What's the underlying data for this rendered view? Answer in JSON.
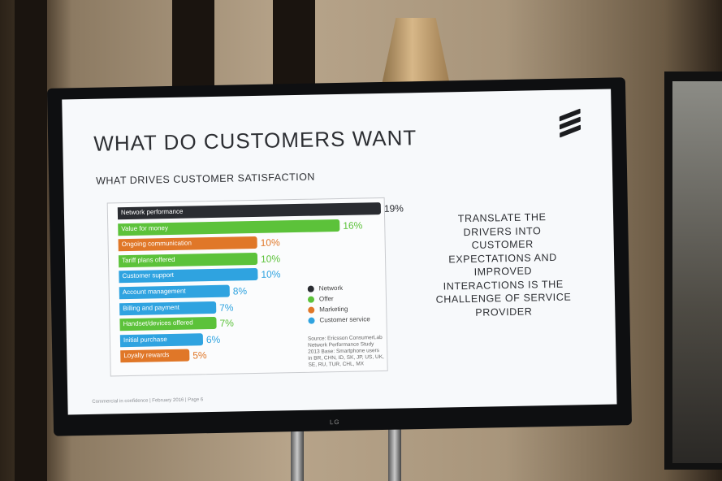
{
  "slide": {
    "title": "WHAT DO CUSTOMERS WANT",
    "subtitle": "WHAT DRIVES CUSTOMER SATISFACTION",
    "takeaway": "TRANSLATE THE DRIVERS INTO CUSTOMER EXPECTATIONS AND IMPROVED INTERACTIONS IS THE CHALLENGE OF SERVICE PROVIDER",
    "footer": "Commercial in confidence | February 2016 | Page 6",
    "source": "Source: Ericsson ConsumerLab Network Performance Study 2013 Base: Smartphone users in BR, CHN, ID, SK, JP, US, UK, SE, RU, TUR, CHL, MX",
    "brand_icon": "ericsson-logo-icon"
  },
  "tv": {
    "brand": "LG"
  },
  "colors": {
    "Network": "#2a2c31",
    "Offer": "#5cc23a",
    "Marketing": "#e07728",
    "Customer service": "#2fa3e0"
  },
  "legend": [
    "Network",
    "Offer",
    "Marketing",
    "Customer service"
  ],
  "chart_data": {
    "type": "bar",
    "orientation": "horizontal",
    "categories": [
      "Network performance",
      "Value for money",
      "Ongoing communication",
      "Tariff plans offered",
      "Customer support",
      "Account management",
      "Billing and payment",
      "Handset/devices offered",
      "Initial purchase",
      "Loyalty rewards"
    ],
    "values": [
      19,
      16,
      10,
      10,
      10,
      8,
      7,
      7,
      6,
      5
    ],
    "value_labels": [
      "19%",
      "16%",
      "10%",
      "10%",
      "10%",
      "8%",
      "7%",
      "7%",
      "6%",
      "5%"
    ],
    "groups": [
      "Network",
      "Offer",
      "Marketing",
      "Offer",
      "Customer service",
      "Customer service",
      "Customer service",
      "Offer",
      "Customer service",
      "Marketing"
    ],
    "xlim": [
      0,
      19
    ]
  }
}
